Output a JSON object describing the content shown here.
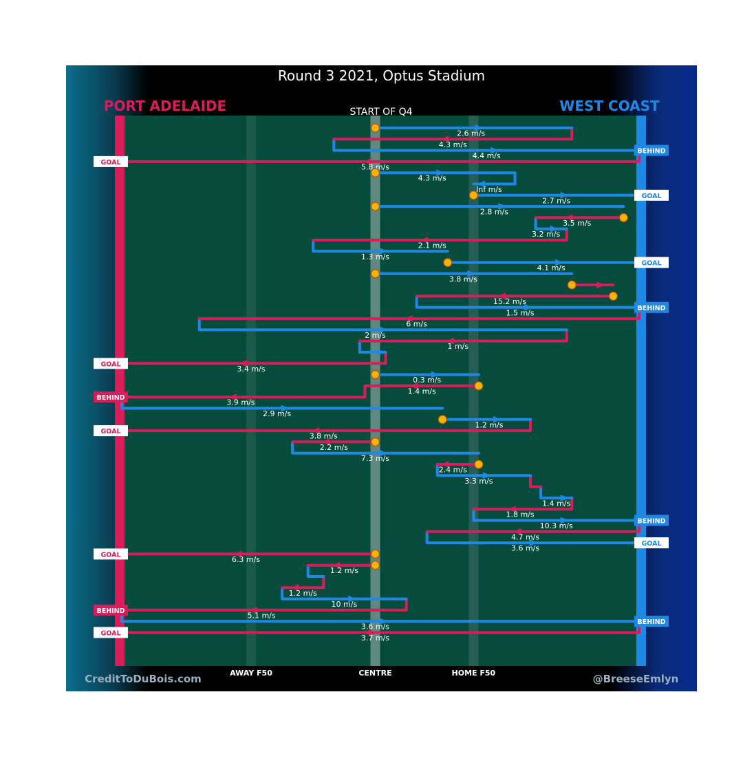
{
  "chart_data": {
    "type": "timeline",
    "title": "Round 3 2021, Optus Stadium",
    "subtitle": "START OF Q4",
    "teams": {
      "left": {
        "name": "PORT ADELAIDE",
        "color": "#d81d5a"
      },
      "right": {
        "name": "WEST COAST",
        "color": "#1e88e5"
      }
    },
    "x_axis_labels": [
      "AWAY F50",
      "CENTRE",
      "HOME F50"
    ],
    "credits": {
      "left": "CreditToDuBois.com",
      "right": "@BreeseEmlyn"
    },
    "colors": {
      "port": "#d81d5a",
      "westcoast": "#1e88e5",
      "field": "#054c3c",
      "marker": "#f5b400"
    },
    "rows": [
      {
        "team": "wc",
        "from": 0.49,
        "to": 0.87,
        "speed": "2.6 m/s",
        "label_x": 0.675,
        "start": "centre"
      },
      {
        "team": "pa",
        "from": 0.87,
        "to": 0.41,
        "speed": "4.3 m/s"
      },
      {
        "team": "wc",
        "from": 0.41,
        "to": 1.0,
        "speed": "4.4 m/s",
        "outcome": "BEHIND"
      },
      {
        "team": "pa",
        "from": 1.0,
        "to": 0.0,
        "speed": "5.8 m/s",
        "outcome": "GOAL",
        "label_x": 0.49
      },
      {
        "team": "wc",
        "from": 0.49,
        "to": 0.76,
        "speed": "4.3 m/s",
        "label_x": 0.6,
        "start": "centre"
      },
      {
        "team": "wc",
        "from": 0.76,
        "to": 0.68,
        "speed": "Inf m/s",
        "label_x": 0.71
      },
      {
        "team": "wc",
        "from": 0.68,
        "to": 1.0,
        "speed": "2.7 m/s",
        "outcome": "GOAL",
        "start": "stoppage"
      },
      {
        "team": "wc",
        "from": 0.49,
        "to": 0.97,
        "speed": "2.8 m/s",
        "label_x": 0.72,
        "start": "centre"
      },
      {
        "team": "pa",
        "from": 0.97,
        "to": 0.8,
        "speed": "3.5 m/s",
        "label_x": 0.88,
        "start": "stoppage"
      },
      {
        "team": "wc",
        "from": 0.8,
        "to": 0.86,
        "speed": "3.2 m/s",
        "label_x": 0.82
      },
      {
        "team": "pa",
        "from": 0.86,
        "to": 0.37,
        "speed": "2.1 m/s",
        "label_x": 0.6
      },
      {
        "team": "wc",
        "from": 0.37,
        "to": 0.63,
        "speed": "1.3 m/s",
        "label_x": 0.49
      },
      {
        "team": "wc",
        "from": 0.63,
        "to": 1.0,
        "speed": "4.1 m/s",
        "outcome": "GOAL",
        "label_x": 0.83,
        "start": "stoppage"
      },
      {
        "team": "wc",
        "from": 0.49,
        "to": 0.87,
        "speed": "3.8 m/s",
        "label_x": 0.66,
        "start": "centre"
      },
      {
        "team": "pa",
        "from": 0.87,
        "to": 0.95,
        "speed": "",
        "start": "stoppage"
      },
      {
        "team": "pa",
        "from": 0.95,
        "to": 0.57,
        "speed": "15.2 m/s",
        "label_x": 0.75,
        "start": "stoppage"
      },
      {
        "team": "wc",
        "from": 0.57,
        "to": 1.0,
        "speed": "1.5 m/s",
        "outcome": "BEHIND",
        "label_x": 0.77
      },
      {
        "team": "pa",
        "from": 1.0,
        "to": 0.15,
        "speed": "6 m/s",
        "label_x": 0.57
      },
      {
        "team": "wc",
        "from": 0.15,
        "to": 0.86,
        "speed": "2 m/s",
        "label_x": 0.49
      },
      {
        "team": "pa",
        "from": 0.86,
        "to": 0.46,
        "speed": "1 m/s",
        "label_x": 0.65
      },
      {
        "team": "wc",
        "from": 0.46,
        "to": 0.51,
        "speed": ""
      },
      {
        "team": "pa",
        "from": 0.51,
        "to": 0.0,
        "speed": "3.4 m/s",
        "outcome": "GOAL",
        "label_x": 0.25
      },
      {
        "team": "wc",
        "from": 0.49,
        "to": 0.69,
        "speed": "0.3 m/s",
        "label_x": 0.59,
        "start": "centre"
      },
      {
        "team": "pa",
        "from": 0.69,
        "to": 0.47,
        "speed": "1.4 m/s",
        "label_x": 0.58,
        "start": "stoppage"
      },
      {
        "team": "pa",
        "from": 0.47,
        "to": 0.0,
        "speed": "3.9 m/s",
        "outcome": "BEHIND",
        "label_x": 0.23
      },
      {
        "team": "wc",
        "from": 0.0,
        "to": 0.62,
        "speed": "2.9 m/s",
        "label_x": 0.3
      },
      {
        "team": "wc",
        "from": 0.62,
        "to": 0.79,
        "speed": "1.2 m/s",
        "label_x": 0.71,
        "start": "stoppage"
      },
      {
        "team": "pa",
        "from": 0.79,
        "to": 0.0,
        "speed": "3.8 m/s",
        "outcome": "GOAL",
        "label_x": 0.39
      },
      {
        "team": "pa",
        "from": 0.49,
        "to": 0.33,
        "speed": "2.2 m/s",
        "label_x": 0.41,
        "start": "centre"
      },
      {
        "team": "wc",
        "from": 0.33,
        "to": 0.69,
        "speed": "7.3 m/s",
        "label_x": 0.49
      },
      {
        "team": "pa",
        "from": 0.69,
        "to": 0.61,
        "speed": "2.4 m/s",
        "label_x": 0.64,
        "start": "stoppage"
      },
      {
        "team": "wc",
        "from": 0.61,
        "to": 0.79,
        "speed": "3.3 m/s",
        "label_x": 0.69
      },
      {
        "team": "pa",
        "from": 0.79,
        "to": 0.81,
        "speed": ""
      },
      {
        "team": "wc",
        "from": 0.81,
        "to": 0.87,
        "speed": "1.4 m/s",
        "label_x": 0.84
      },
      {
        "team": "pa",
        "from": 0.87,
        "to": 0.68,
        "speed": "1.8 m/s",
        "label_x": 0.77
      },
      {
        "team": "wc",
        "from": 0.68,
        "to": 1.0,
        "speed": "10.3 m/s",
        "outcome": "BEHIND",
        "label_x": 0.84
      },
      {
        "team": "pa",
        "from": 1.0,
        "to": 0.59,
        "speed": "4.7 m/s",
        "label_x": 0.78
      },
      {
        "team": "wc",
        "from": 0.59,
        "to": 1.0,
        "speed": "3.6 m/s",
        "outcome": "GOAL",
        "label_x": 0.78
      },
      {
        "team": "pa",
        "from": 0.49,
        "to": 0.0,
        "speed": "6.3 m/s",
        "outcome": "GOAL",
        "label_x": 0.24,
        "start": "centre"
      },
      {
        "team": "pa",
        "from": 0.49,
        "to": 0.36,
        "speed": "1.2 m/s",
        "label_x": 0.43,
        "start": "centre"
      },
      {
        "team": "wc",
        "from": 0.36,
        "to": 0.39,
        "speed": ""
      },
      {
        "team": "pa",
        "from": 0.39,
        "to": 0.31,
        "speed": "1.2 m/s",
        "label_x": 0.35
      },
      {
        "team": "wc",
        "from": 0.31,
        "to": 0.55,
        "speed": "10 m/s",
        "label_x": 0.43
      },
      {
        "team": "pa",
        "from": 0.55,
        "to": 0.0,
        "speed": "5.1 m/s",
        "outcome": "BEHIND",
        "label_x": 0.27
      },
      {
        "team": "wc",
        "from": 0.0,
        "to": 1.0,
        "speed": "3.6 m/s",
        "outcome": "BEHIND",
        "label_x": 0.49
      },
      {
        "team": "pa",
        "from": 1.0,
        "to": 0.0,
        "speed": "3.7 m/s",
        "outcome": "GOAL",
        "label_x": 0.49
      }
    ]
  }
}
